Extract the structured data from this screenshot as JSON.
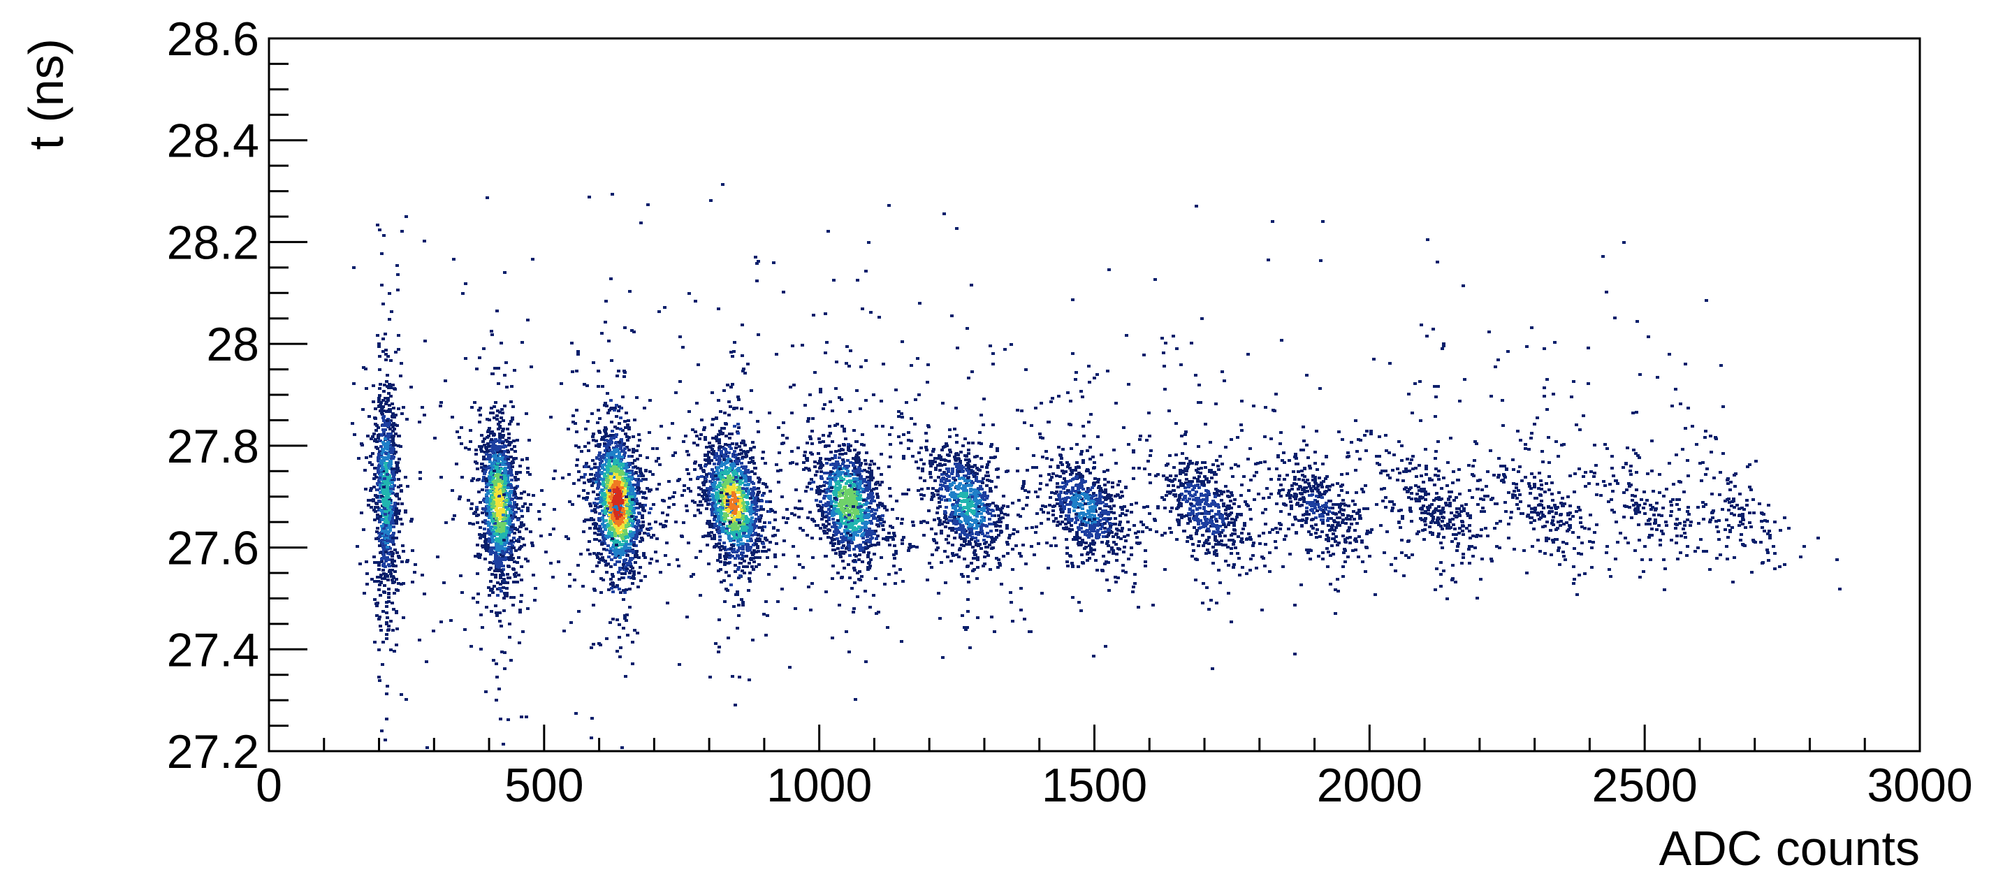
{
  "chart_data": {
    "type": "heatmap",
    "subtype": "2D histogram scatter",
    "title": "",
    "xlabel": "ADC counts",
    "ylabel": "t (ns)",
    "xlim": [
      0,
      3000
    ],
    "ylim": [
      27.2,
      28.6
    ],
    "x_ticks": [
      "0",
      "500",
      "1000",
      "1500",
      "2000",
      "2500",
      "3000"
    ],
    "y_ticks": [
      "27.2",
      "27.4",
      "27.6",
      "27.8",
      "28",
      "28.2",
      "28.4",
      "28.6"
    ],
    "grid": false,
    "legend": "none",
    "colormap": [
      "#0a1f6b",
      "#1d3fa0",
      "#1f7fc8",
      "#21b5b0",
      "#6fd26a",
      "#f2e23a",
      "#f07a22",
      "#d42d1e"
    ],
    "clusters": [
      {
        "x_center": 210,
        "t_center": 27.71,
        "x_sigma": 11,
        "t_sigma": 0.105,
        "peak_density": 0.55
      },
      {
        "x_center": 415,
        "t_center": 27.69,
        "x_sigma": 17,
        "t_sigma": 0.075,
        "peak_density": 0.8
      },
      {
        "x_center": 630,
        "t_center": 27.69,
        "x_sigma": 22,
        "t_sigma": 0.07,
        "peak_density": 1.0
      },
      {
        "x_center": 840,
        "t_center": 27.69,
        "x_sigma": 27,
        "t_sigma": 0.06,
        "peak_density": 0.85
      },
      {
        "x_center": 1050,
        "t_center": 27.69,
        "x_sigma": 31,
        "t_sigma": 0.055,
        "peak_density": 0.7
      },
      {
        "x_center": 1265,
        "t_center": 27.69,
        "x_sigma": 35,
        "t_sigma": 0.05,
        "peak_density": 0.5
      },
      {
        "x_center": 1480,
        "t_center": 27.68,
        "x_sigma": 38,
        "t_sigma": 0.045,
        "peak_density": 0.4
      },
      {
        "x_center": 1695,
        "t_center": 27.68,
        "x_sigma": 40,
        "t_sigma": 0.045,
        "peak_density": 0.3
      },
      {
        "x_center": 1905,
        "t_center": 27.68,
        "x_sigma": 42,
        "t_sigma": 0.04,
        "peak_density": 0.22
      },
      {
        "x_center": 2120,
        "t_center": 27.68,
        "x_sigma": 44,
        "t_sigma": 0.04,
        "peak_density": 0.14
      },
      {
        "x_center": 2310,
        "t_center": 27.68,
        "x_sigma": 45,
        "t_sigma": 0.04,
        "peak_density": 0.09
      },
      {
        "x_center": 2510,
        "t_center": 27.67,
        "x_sigma": 50,
        "t_sigma": 0.04,
        "peak_density": 0.06
      },
      {
        "x_center": 2680,
        "t_center": 27.66,
        "x_sigma": 40,
        "t_sigma": 0.04,
        "peak_density": 0.04
      }
    ]
  }
}
